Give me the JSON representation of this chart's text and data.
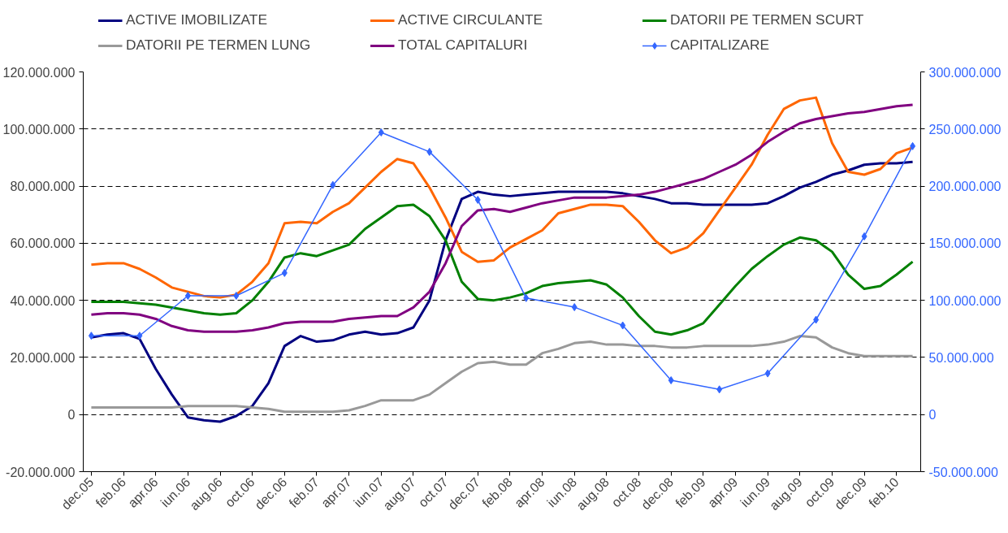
{
  "chart_data": {
    "type": "line",
    "categories": [
      "dec.05",
      null,
      "feb.06",
      null,
      "apr.06",
      null,
      "iun.06",
      null,
      "aug.06",
      null,
      "oct.06",
      null,
      "dec.06",
      null,
      "feb.07",
      null,
      "apr.07",
      null,
      "iun.07",
      null,
      "aug.07",
      null,
      "oct.07",
      null,
      "dec.07",
      null,
      "feb.08",
      null,
      "apr.08",
      null,
      "iun.08",
      null,
      "aug.08",
      null,
      "oct.08",
      null,
      "dec.08",
      null,
      "feb.09",
      null,
      "apr.09",
      null,
      "iun.09",
      null,
      "aug.09",
      null,
      "oct.09",
      null,
      "dec.09",
      null,
      "feb.10",
      null
    ],
    "ylim": [
      -20000000,
      120000000
    ],
    "yticks": [
      {
        "value": -20000000,
        "label": "-20.000.000"
      },
      0,
      {
        "value": 20000000,
        "label": "20.000.000"
      },
      {
        "value": 40000000,
        "label": "40.000.000"
      },
      {
        "value": 60000000,
        "label": "60.000.000"
      },
      {
        "value": 80000000,
        "label": "80.000.000"
      },
      {
        "value": 100000000,
        "label": "100.000.000"
      },
      {
        "value": 120000000,
        "label": "120.000.000"
      }
    ],
    "y2lim": [
      -50000000,
      300000000
    ],
    "y2ticks": [
      {
        "value": -50000000,
        "label": "-50.000.000"
      },
      0,
      {
        "value": 50000000,
        "label": "50.000.000"
      },
      {
        "value": 100000000,
        "label": "100.000.000"
      },
      {
        "value": 150000000,
        "label": "150.000.000"
      },
      {
        "value": 200000000,
        "label": "200.000.000"
      },
      {
        "value": 250000000,
        "label": "250.000.000"
      },
      {
        "value": 300000000,
        "label": "300.000.000"
      }
    ],
    "grid": "y",
    "legend": "top",
    "series": [
      {
        "name": "ACTIVE IMOBILIZATE",
        "color": "#000080",
        "values": [
          27000000,
          28000000,
          28500000,
          26500000,
          16000000,
          7000000,
          -1000000,
          -2000000,
          -2500000,
          -500000,
          3000000,
          11000000,
          24000000,
          27500000,
          25500000,
          26000000,
          28000000,
          29000000,
          28000000,
          28500000,
          30500000,
          40000000,
          61000000,
          75500000,
          78000000,
          77000000,
          76500000,
          77000000,
          77500000,
          78000000,
          78000000,
          78000000,
          78000000,
          77500000,
          76500000,
          75500000,
          74000000,
          74000000,
          73500000,
          73500000,
          73500000,
          73500000,
          74000000,
          76500000,
          79500000,
          81500000,
          84000000,
          85500000,
          87500000,
          88000000,
          88000000,
          88500000
        ]
      },
      {
        "name": "ACTIVE CIRCULANTE",
        "color": "#ff6600",
        "values": [
          52500000,
          53000000,
          53000000,
          51000000,
          48000000,
          44500000,
          43000000,
          41500000,
          41000000,
          42000000,
          46500000,
          53000000,
          67000000,
          67500000,
          67000000,
          71000000,
          74000000,
          79500000,
          85000000,
          89500000,
          88000000,
          79500000,
          69000000,
          57000000,
          53500000,
          54000000,
          58500000,
          61500000,
          64500000,
          70500000,
          72000000,
          73500000,
          73500000,
          73000000,
          67500000,
          61000000,
          56500000,
          58500000,
          63500000,
          71500000,
          79500000,
          87500000,
          98000000,
          107000000,
          110000000,
          111000000,
          95000000,
          85000000,
          84000000,
          86000000,
          91500000,
          93500000
        ]
      },
      {
        "name": "DATORII PE TERMEN SCURT",
        "color": "#008000",
        "values": [
          39500000,
          39500000,
          39500000,
          39000000,
          38500000,
          37500000,
          36500000,
          35500000,
          35000000,
          35500000,
          40000000,
          46500000,
          55000000,
          56500000,
          55500000,
          57500000,
          59500000,
          65000000,
          69000000,
          73000000,
          73500000,
          69500000,
          61000000,
          46500000,
          40500000,
          40000000,
          41000000,
          42500000,
          45000000,
          46000000,
          46500000,
          47000000,
          45500000,
          41000000,
          34500000,
          29000000,
          28000000,
          29500000,
          32000000,
          38500000,
          45000000,
          51000000,
          55500000,
          59500000,
          62000000,
          61000000,
          57000000,
          49000000,
          44000000,
          45000000,
          49000000,
          53500000
        ]
      },
      {
        "name": "DATORII PE TERMEN LUNG",
        "color": "#999999",
        "values": [
          2500000,
          2500000,
          2500000,
          2500000,
          2500000,
          2500000,
          3000000,
          3000000,
          3000000,
          3000000,
          2500000,
          2000000,
          1000000,
          1000000,
          1000000,
          1000000,
          1500000,
          3000000,
          5000000,
          5000000,
          5000000,
          7000000,
          11000000,
          15000000,
          18000000,
          18500000,
          17500000,
          17500000,
          21500000,
          23000000,
          25000000,
          25500000,
          24500000,
          24500000,
          24000000,
          24000000,
          23500000,
          23500000,
          24000000,
          24000000,
          24000000,
          24000000,
          24500000,
          25500000,
          27500000,
          27000000,
          23500000,
          21500000,
          20500000,
          20500000,
          20500000,
          20500000
        ]
      },
      {
        "name": "TOTAL CAPITALURI",
        "color": "#800080",
        "values": [
          35000000,
          35500000,
          35500000,
          35000000,
          33500000,
          31000000,
          29500000,
          29000000,
          29000000,
          29000000,
          29500000,
          30500000,
          32000000,
          32500000,
          32500000,
          32500000,
          33500000,
          34000000,
          34500000,
          34500000,
          37500000,
          43000000,
          53000000,
          66000000,
          71500000,
          72000000,
          71000000,
          72500000,
          74000000,
          75000000,
          76000000,
          76000000,
          76000000,
          76500000,
          77000000,
          78000000,
          79500000,
          81000000,
          82500000,
          85000000,
          87500000,
          91000000,
          95500000,
          99000000,
          102000000,
          103500000,
          104500000,
          105500000,
          106000000,
          107000000,
          108000000,
          108500000
        ]
      },
      {
        "name": "CAPITALIZARE",
        "color": "#3366ff",
        "axis": "y2",
        "marker": "diamond",
        "values": [
          69000000,
          null,
          null,
          69000000,
          null,
          null,
          104000000,
          null,
          null,
          104000000,
          null,
          null,
          124000000,
          null,
          null,
          201000000,
          null,
          null,
          247000000,
          null,
          null,
          230000000,
          null,
          null,
          188000000,
          null,
          null,
          102000000,
          null,
          null,
          94000000,
          null,
          null,
          78000000,
          null,
          null,
          30000000,
          null,
          null,
          22000000,
          null,
          null,
          36000000,
          null,
          null,
          83000000,
          null,
          null,
          156000000,
          null,
          null,
          235000000
        ]
      }
    ]
  }
}
